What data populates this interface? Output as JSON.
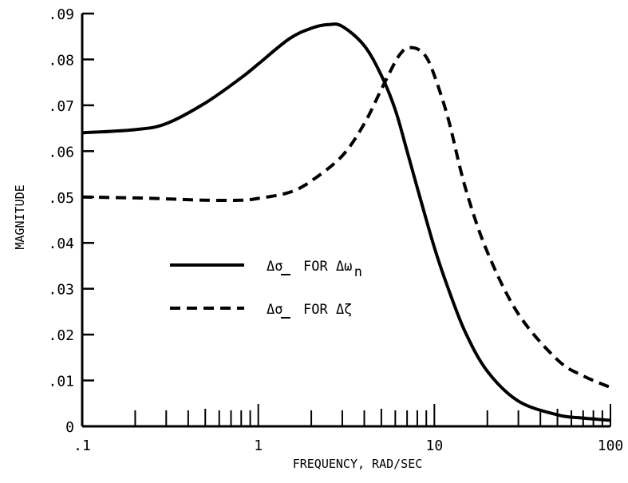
{
  "chart_data": {
    "type": "line",
    "xscale": "log",
    "xlim": [
      0.1,
      100
    ],
    "ylim": [
      0,
      0.09
    ],
    "xlabel": "FREQUENCY, RAD/SEC",
    "ylabel": "MAGNITUDE",
    "grid": false,
    "legend_position": "center-left",
    "x_tick_labels": [
      {
        "value": 0.1,
        "label": ".1"
      },
      {
        "value": 1,
        "label": "1"
      },
      {
        "value": 10,
        "label": "10"
      },
      {
        "value": 100,
        "label": "100"
      }
    ],
    "y_tick_labels": [
      {
        "value": 0,
        "label": "0"
      },
      {
        "value": 0.01,
        "label": ".01"
      },
      {
        "value": 0.02,
        "label": ".02"
      },
      {
        "value": 0.03,
        "label": ".03"
      },
      {
        "value": 0.04,
        "label": ".04"
      },
      {
        "value": 0.05,
        "label": ".05"
      },
      {
        "value": 0.06,
        "label": ".06"
      },
      {
        "value": 0.07,
        "label": ".07"
      },
      {
        "value": 0.08,
        "label": ".08"
      },
      {
        "value": 0.09,
        "label": ".09"
      }
    ],
    "series": [
      {
        "name": "Δσ FOR Δωn",
        "style": "solid",
        "x": [
          0.1,
          0.2,
          0.3,
          0.5,
          0.8,
          1.0,
          1.5,
          2.0,
          2.5,
          3.0,
          4.0,
          5.0,
          6.0,
          7.0,
          8.0,
          10,
          12,
          15,
          20,
          30,
          50,
          70,
          100
        ],
        "y": [
          0.064,
          0.0647,
          0.066,
          0.0705,
          0.076,
          0.079,
          0.0845,
          0.0868,
          0.0876,
          0.0872,
          0.083,
          0.0765,
          0.069,
          0.06,
          0.052,
          0.039,
          0.03,
          0.0205,
          0.012,
          0.0055,
          0.0025,
          0.0018,
          0.0013
        ]
      },
      {
        "name": "Δσ FOR Δζ",
        "style": "dashed",
        "x": [
          0.1,
          0.2,
          0.3,
          0.5,
          0.8,
          1.0,
          1.5,
          2.0,
          3.0,
          4.0,
          5.0,
          6.0,
          6.5,
          7.0,
          8.0,
          9.0,
          10,
          12,
          15,
          20,
          30,
          50,
          70,
          100
        ],
        "y": [
          0.05,
          0.0498,
          0.0496,
          0.0493,
          0.0493,
          0.0497,
          0.051,
          0.0535,
          0.059,
          0.066,
          0.0735,
          0.0795,
          0.0815,
          0.0825,
          0.0823,
          0.0805,
          0.0765,
          0.067,
          0.052,
          0.038,
          0.0245,
          0.0145,
          0.011,
          0.0085
        ]
      }
    ]
  },
  "legend": {
    "items": [
      {
        "symbol": "Δσ",
        "text": "FOR Δω",
        "subscript": "n",
        "style": "solid"
      },
      {
        "symbol": "Δσ",
        "text": "FOR Δζ",
        "subscript": "",
        "style": "dashed"
      }
    ]
  }
}
